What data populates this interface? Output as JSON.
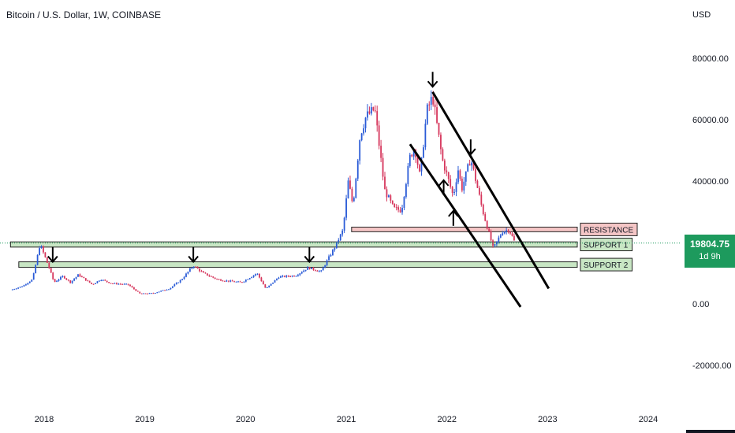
{
  "header": {
    "title": "Bitcoin / U.S. Dollar, 1W, COINBASE"
  },
  "price_axis": {
    "unit": "USD"
  },
  "last_price": {
    "value": "19804.75",
    "countdown": "1d 9h"
  },
  "colors": {
    "up": "#2a5bd7",
    "down": "#d6365c",
    "last_price": "#1d9a5d",
    "resistance_fill": "#f5c6c6",
    "support_fill": "#c8e6c4"
  },
  "chart_data": {
    "type": "line",
    "title": "Bitcoin / U.S. Dollar, 1W, COINBASE",
    "ylabel": "USD",
    "ylim": [
      -25000,
      90000
    ],
    "y_ticks": [
      "80000.00",
      "60000.00",
      "40000.00",
      "0.00",
      "-20000.00"
    ],
    "y_tick_values": [
      80000,
      60000,
      40000,
      0,
      -20000
    ],
    "x_ticks": [
      "2018",
      "2019",
      "2020",
      "2021",
      "2022",
      "2023",
      "2024"
    ],
    "x_tick_values": [
      "2018-01-01",
      "2019-01-01",
      "2020-01-01",
      "2021-01-01",
      "2022-01-01",
      "2023-01-01",
      "2024-01-01"
    ],
    "series": [
      {
        "x": [
          "2017-09-01",
          "2017-10-15",
          "2017-11-20",
          "2017-12-17",
          "2018-01-20",
          "2018-02-06",
          "2018-03-10",
          "2018-04-06",
          "2018-05-05",
          "2018-06-25",
          "2018-07-25",
          "2018-09-01",
          "2018-11-01",
          "2018-12-15",
          "2019-02-01",
          "2019-04-01",
          "2019-05-15",
          "2019-06-26",
          "2019-08-01",
          "2019-09-20",
          "2019-10-25",
          "2019-12-18",
          "2020-02-12",
          "2020-03-15",
          "2020-05-01",
          "2020-07-01",
          "2020-08-15",
          "2020-10-01",
          "2020-11-20",
          "2020-12-20",
          "2021-01-08",
          "2021-01-25",
          "2021-02-20",
          "2021-03-13",
          "2021-04-14",
          "2021-05-20",
          "2021-06-22",
          "2021-07-20",
          "2021-08-20",
          "2021-09-06",
          "2021-09-25",
          "2021-10-20",
          "2021-11-10",
          "2021-12-15",
          "2022-01-24",
          "2022-02-10",
          "2022-02-24",
          "2022-03-28",
          "2022-05-10",
          "2022-06-18",
          "2022-07-20",
          "2022-08-14",
          "2022-09-05"
        ],
        "y": [
          4500,
          5800,
          8000,
          19500,
          11500,
          7000,
          9000,
          7000,
          9500,
          6300,
          8000,
          6700,
          6300,
          3300,
          3500,
          5000,
          8000,
          12500,
          10000,
          8000,
          7500,
          7000,
          10000,
          4900,
          8800,
          9200,
          11800,
          10500,
          18500,
          24000,
          40000,
          32000,
          55000,
          61000,
          63500,
          37000,
          31000,
          30500,
          48000,
          51000,
          41500,
          63000,
          67500,
          47000,
          35000,
          44000,
          37500,
          47500,
          30500,
          18000,
          23500,
          24200,
          19800
        ]
      }
    ],
    "horizontal_zones": [
      {
        "label": "RESISTANCE",
        "y_low": 23500,
        "y_high": 25000,
        "x_start": "2021-01-20"
      },
      {
        "label": "SUPPORT 1",
        "y_low": 18500,
        "y_high": 20200,
        "x_start": "2017-09-01"
      },
      {
        "label": "SUPPORT 2",
        "y_low": 11900,
        "y_high": 13700,
        "x_start": "2017-10-01"
      }
    ],
    "trend_lines": [
      {
        "from": {
          "x": "2021-11-10",
          "y": 69000
        },
        "to": {
          "x": "2023-01-05",
          "y": 5000
        }
      },
      {
        "from": {
          "x": "2021-08-20",
          "y": 52000
        },
        "to": {
          "x": "2022-09-25",
          "y": -1000
        }
      }
    ],
    "arrows": [
      {
        "direction": "down",
        "x": "2018-02-01",
        "y": 15500
      },
      {
        "direction": "down",
        "x": "2019-06-26",
        "y": 15500
      },
      {
        "direction": "down",
        "x": "2020-08-20",
        "y": 15500
      },
      {
        "direction": "down",
        "x": "2021-11-10",
        "y": 72500
      },
      {
        "direction": "down",
        "x": "2022-03-28",
        "y": 50500
      },
      {
        "direction": "up",
        "x": "2021-12-20",
        "y": 38500
      },
      {
        "direction": "up",
        "x": "2022-01-24",
        "y": 28500
      }
    ]
  }
}
